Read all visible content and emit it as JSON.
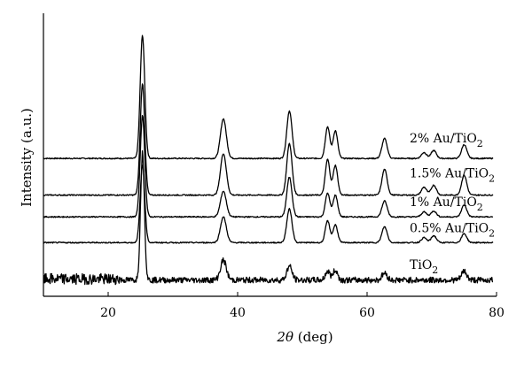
{
  "chart_data": {
    "type": "line",
    "xlabel_var": "2θ",
    "xlabel_unit": " (deg)",
    "ylabel": "Intensity (a.u.)",
    "xlim": [
      10,
      80
    ],
    "xticks": [
      20,
      40,
      60,
      80
    ],
    "grid": false,
    "legend": "inline-right",
    "series": [
      {
        "name": "2% Au/TiO2",
        "label_base": "2% Au/TiO",
        "label_sub": "2",
        "baseline": 6.2,
        "peaks": [
          [
            25.3,
            6.2,
            0.35
          ],
          [
            37.8,
            2.0,
            0.45
          ],
          [
            48.0,
            2.4,
            0.4
          ],
          [
            53.9,
            1.6,
            0.35
          ],
          [
            55.1,
            1.4,
            0.35
          ],
          [
            62.7,
            1.0,
            0.4
          ],
          [
            68.8,
            0.3,
            0.4
          ],
          [
            70.3,
            0.4,
            0.4
          ],
          [
            75.0,
            0.7,
            0.4
          ]
        ]
      },
      {
        "name": "1.5% Au/TiO2",
        "label_base": "1.5% Au/TiO",
        "label_sub": "2",
        "baseline": 4.35,
        "peaks": [
          [
            25.3,
            5.6,
            0.35
          ],
          [
            37.8,
            2.1,
            0.45
          ],
          [
            48.0,
            2.6,
            0.4
          ],
          [
            53.9,
            1.8,
            0.35
          ],
          [
            55.1,
            1.5,
            0.35
          ],
          [
            62.7,
            1.3,
            0.4
          ],
          [
            68.8,
            0.4,
            0.4
          ],
          [
            70.3,
            0.5,
            0.4
          ],
          [
            75.0,
            1.0,
            0.4
          ]
        ]
      },
      {
        "name": "1% Au/TiO2",
        "label_base": "1% Au/TiO",
        "label_sub": "2",
        "baseline": 3.25,
        "peaks": [
          [
            25.3,
            5.1,
            0.35
          ],
          [
            37.8,
            1.3,
            0.45
          ],
          [
            48.0,
            2.0,
            0.4
          ],
          [
            53.9,
            1.2,
            0.35
          ],
          [
            55.1,
            1.1,
            0.35
          ],
          [
            62.7,
            0.8,
            0.4
          ],
          [
            68.8,
            0.25,
            0.4
          ],
          [
            70.3,
            0.3,
            0.4
          ],
          [
            75.0,
            0.6,
            0.4
          ]
        ]
      },
      {
        "name": "0.5% Au/TiO2",
        "label_base": "0.5% Au/TiO",
        "label_sub": "2",
        "baseline": 1.95,
        "peaks": [
          [
            25.3,
            3.9,
            0.35
          ],
          [
            37.8,
            1.3,
            0.45
          ],
          [
            48.0,
            1.7,
            0.4
          ],
          [
            53.9,
            1.1,
            0.35
          ],
          [
            55.1,
            0.9,
            0.35
          ],
          [
            62.7,
            0.8,
            0.4
          ],
          [
            68.8,
            0.25,
            0.4
          ],
          [
            70.3,
            0.35,
            0.4
          ],
          [
            75.0,
            0.45,
            0.4
          ]
        ]
      },
      {
        "name": "TiO2",
        "label_base": "TiO",
        "label_sub": "2",
        "baseline": 0.0,
        "noisy": true,
        "peaks": [
          [
            25.3,
            6.4,
            0.3
          ],
          [
            37.8,
            1.0,
            0.45
          ],
          [
            48.0,
            0.7,
            0.4
          ],
          [
            53.9,
            0.45,
            0.35
          ],
          [
            55.1,
            0.5,
            0.35
          ],
          [
            62.7,
            0.35,
            0.4
          ],
          [
            75.0,
            0.45,
            0.4
          ]
        ]
      }
    ]
  }
}
